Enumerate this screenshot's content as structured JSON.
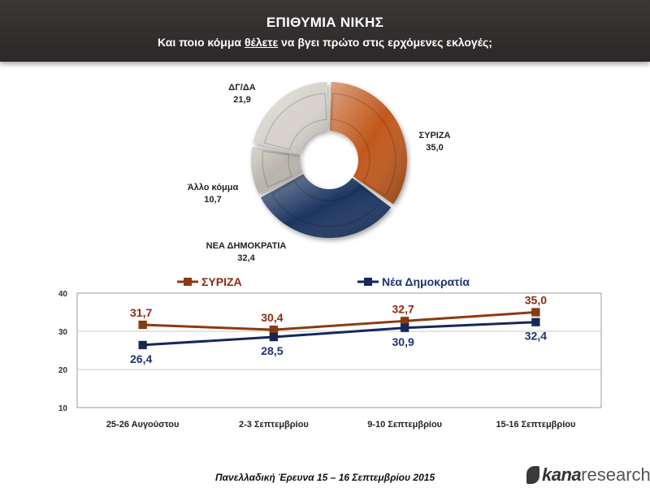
{
  "header": {
    "title": "ΕΠΙΘΥΜΙΑ ΝΙΚΗΣ",
    "subtitle_pre": "Και ποιο κόμμα ",
    "subtitle_ul": "θέλετε",
    "subtitle_post": " να βγει πρώτο στις ερχόμενες εκλογές;"
  },
  "chart_data": [
    {
      "type": "pie",
      "variant": "donut",
      "slices": [
        {
          "label": "ΣΥΡΙΖΑ",
          "value": 35.0,
          "value_label": "35,0",
          "color": "#c0581a"
        },
        {
          "label": "ΝΕΑ ΔΗΜΟΚΡΑΤΙΑ",
          "value": 32.4,
          "value_label": "32,4",
          "color": "#1f3461"
        },
        {
          "label": "Άλλο κόμμα",
          "value": 10.7,
          "value_label": "10,7",
          "color": "#b9b4ab"
        },
        {
          "label": "ΔΓ/ΔΑ",
          "value": 21.9,
          "value_label": "21,9",
          "color": "#d7d3cc"
        }
      ]
    },
    {
      "type": "line",
      "categories": [
        "25-26 Αυγούστου",
        "2-3 Σεπτεμβρίου",
        "9-10 Σεπτεμβρίου",
        "15-16 Σεπτεμβρίου"
      ],
      "series": [
        {
          "name": "ΣΥΡΙΖΑ",
          "values": [
            31.7,
            30.4,
            32.7,
            35.0
          ],
          "labels": [
            "31,7",
            "30,4",
            "32,7",
            "35,0"
          ],
          "color": "#8b3a10",
          "label_color": "#8b2b12"
        },
        {
          "name": "Νέα Δημοκρατία",
          "values": [
            26.4,
            28.5,
            30.9,
            32.4
          ],
          "labels": [
            "26,4",
            "28,5",
            "30,9",
            "32,4"
          ],
          "color": "#16285a",
          "label_color": "#1c3470"
        }
      ],
      "ylim": [
        10,
        40
      ],
      "yticks": [
        "10",
        "20",
        "30",
        "40"
      ],
      "grid": true,
      "legend": "top"
    }
  ],
  "footer": {
    "survey": "Πανελλαδική Έρευνα 15 – 16 Σεπτεμβρίου 2015",
    "logo_kana": "kana",
    "logo_research": "research"
  }
}
